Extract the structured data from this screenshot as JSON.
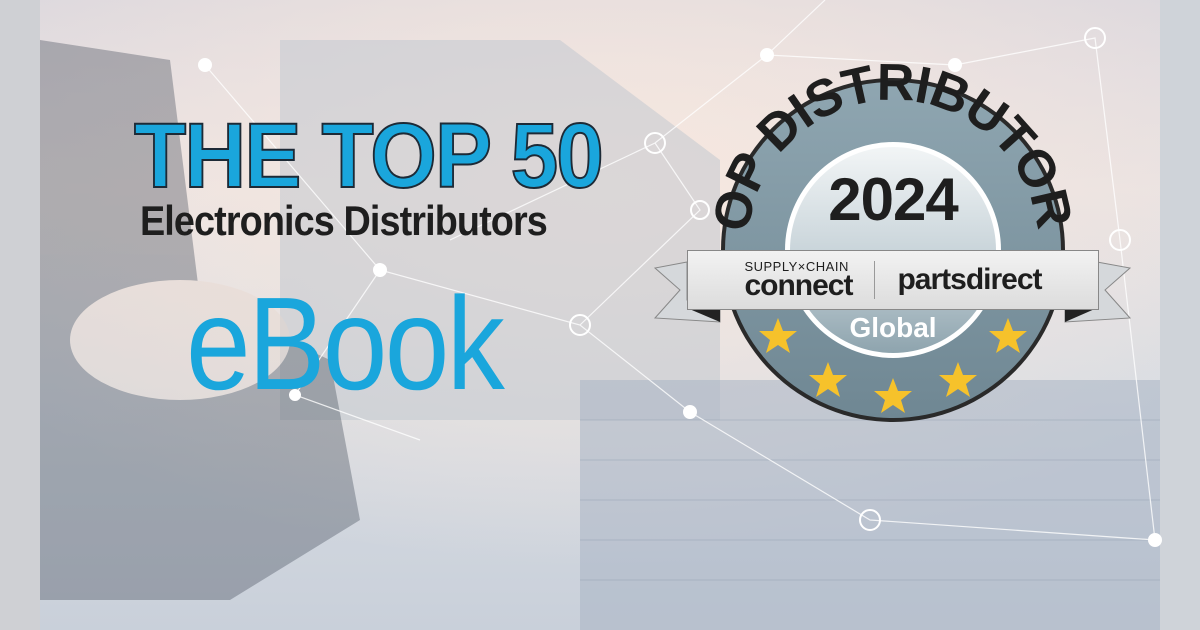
{
  "headline": {
    "line1": "THE TOP 50",
    "line2": "Electronics Distributors",
    "line3": "eBook"
  },
  "badge": {
    "arc_text": "TOP DISTRIBUTORS",
    "year": "2024",
    "logo_left_top": "SUPPLY×CHAIN",
    "logo_left_bottom": "connect",
    "logo_right": "partsdirect",
    "region": "Global",
    "stars": 5
  },
  "colors": {
    "accent": "#1aa6dc",
    "badge_ring": "#7e97a3",
    "star": "#f6c22b"
  }
}
